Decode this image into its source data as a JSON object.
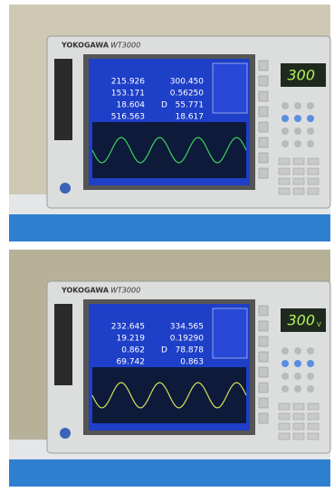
{
  "photos": [
    {
      "brand": "YOKOGAWA",
      "model": "WT3000",
      "readings_left": [
        "215.926",
        "153.171",
        "18.604",
        "516.563"
      ],
      "readings_right": [
        "300.450",
        "0.56250",
        "55.771",
        "18.617"
      ],
      "marker": "D",
      "display": "300"
    },
    {
      "brand": "YOKOGAWA",
      "model": "WT3000",
      "readings_left": [
        "232.645",
        "19.219",
        "0.862",
        "69.742"
      ],
      "readings_right": [
        "334.565",
        "0.19290",
        "78.878",
        "0.863"
      ],
      "marker": "D",
      "display": "300",
      "display_unit": "V"
    }
  ]
}
